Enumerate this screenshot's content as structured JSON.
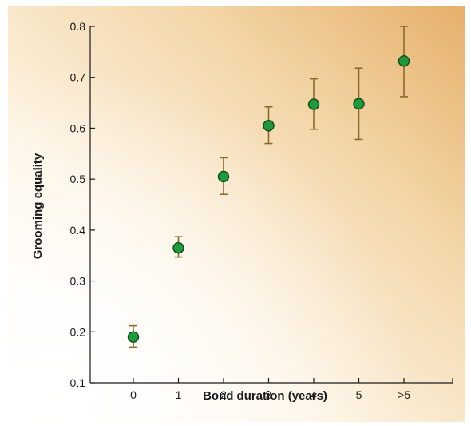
{
  "chart_data": {
    "type": "scatter",
    "title": "",
    "xlabel": "Bond duration (years)",
    "ylabel": "Grooming equality",
    "categories": [
      "0",
      "1",
      "2",
      "3",
      "4",
      "5",
      ">5"
    ],
    "x": [
      "0",
      "1",
      "2",
      "3",
      "4",
      "5",
      ">5"
    ],
    "y": [
      0.19,
      0.365,
      0.505,
      0.605,
      0.647,
      0.648,
      0.732
    ],
    "error_low": [
      0.17,
      0.347,
      0.47,
      0.57,
      0.598,
      0.578,
      0.662
    ],
    "error_high": [
      0.212,
      0.387,
      0.542,
      0.642,
      0.697,
      0.718,
      0.8
    ],
    "ylim": [
      0.1,
      0.8
    ],
    "yticks": [
      "0.1",
      "0.2",
      "0.3",
      "0.4",
      "0.5",
      "0.6",
      "0.7",
      "0.8"
    ],
    "grid": false,
    "legend": "none",
    "colors": {
      "marker_fill": "#1e9a3c",
      "marker_stroke": "#0d4a1c",
      "error_bar": "#8a6a2a",
      "axis": "#1a1a1a",
      "background_light": "#fffdf8",
      "background_dark": "#e8b876"
    }
  }
}
